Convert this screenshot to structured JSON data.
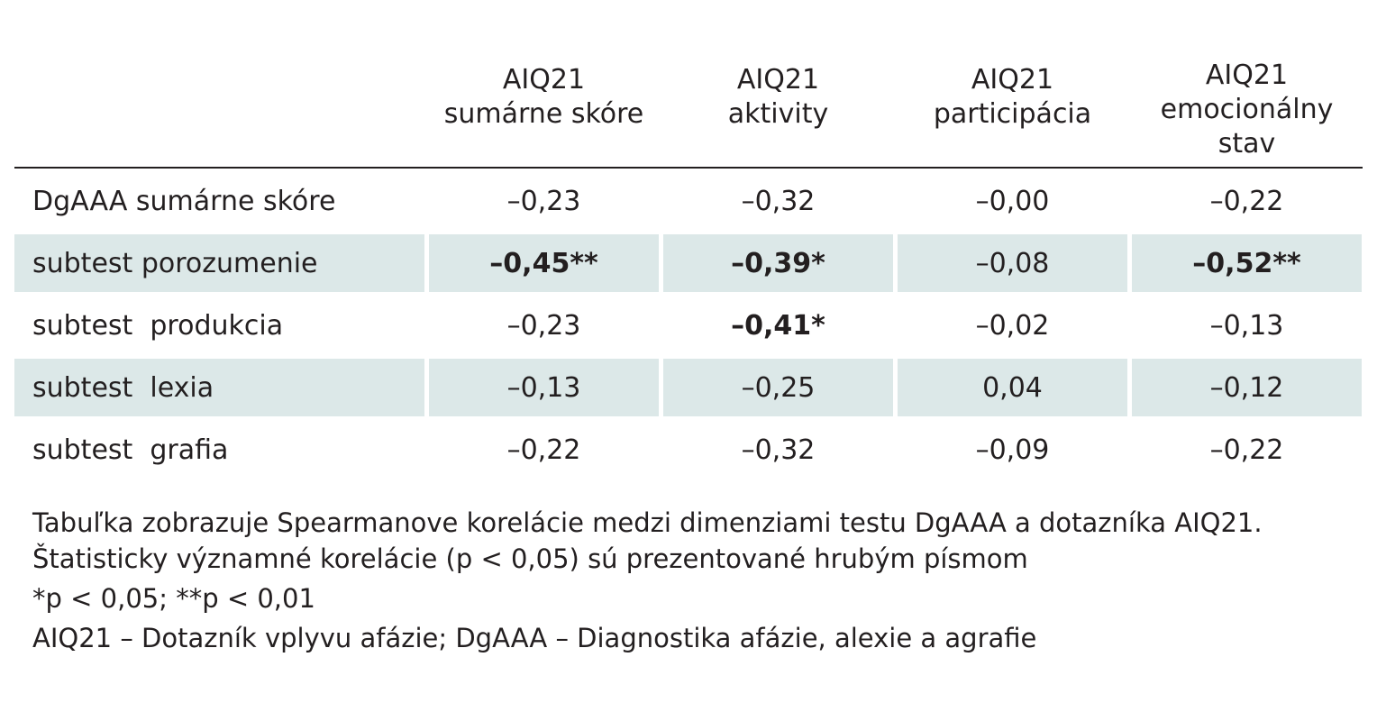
{
  "table": {
    "header": [
      "",
      "AIQ21\nsumárne skóre",
      "AIQ21\naktivity",
      "AIQ21\nparticipácia",
      "AIQ21\nemocionálny\nstav"
    ],
    "rows": [
      {
        "label": "DgAAA sumárne skóre",
        "shaded": false,
        "cells": [
          {
            "value": "–0,23",
            "bold": false
          },
          {
            "value": "–0,32",
            "bold": false
          },
          {
            "value": "–0,00",
            "bold": false
          },
          {
            "value": "–0,22",
            "bold": false
          }
        ]
      },
      {
        "label": "subtest porozumenie",
        "shaded": true,
        "cells": [
          {
            "value": "–0,45**",
            "bold": true
          },
          {
            "value": "–0,39*",
            "bold": true
          },
          {
            "value": "–0,08",
            "bold": false
          },
          {
            "value": "–0,52**",
            "bold": true
          }
        ]
      },
      {
        "label": "subtest  produkcia",
        "shaded": false,
        "cells": [
          {
            "value": "–0,23",
            "bold": false
          },
          {
            "value": "–0,41*",
            "bold": true
          },
          {
            "value": "–0,02",
            "bold": false
          },
          {
            "value": "–0,13",
            "bold": false
          }
        ]
      },
      {
        "label": "subtest  lexia",
        "shaded": true,
        "cells": [
          {
            "value": "–0,13",
            "bold": false
          },
          {
            "value": "–0,25",
            "bold": false
          },
          {
            "value": "0,04",
            "bold": false
          },
          {
            "value": "–0,12",
            "bold": false
          }
        ]
      },
      {
        "label": "subtest  grafia",
        "shaded": false,
        "cells": [
          {
            "value": "–0,22",
            "bold": false
          },
          {
            "value": "–0,32",
            "bold": false
          },
          {
            "value": "–0,09",
            "bold": false
          },
          {
            "value": "–0,22",
            "bold": false
          }
        ]
      }
    ]
  },
  "notes": {
    "description": "Tabuľka zobrazuje Spearmanove korelácie medzi dimenziami testu DgAAA a dotazníka AIQ21. Štatisticky významné korelácie (p < 0,05) sú prezentované hrubým písmom",
    "significance": "*p < 0,05; **p < 0,01",
    "abbreviations": "AIQ21 – Dotazník vplyvu afázie; DgAAA – Diagnostika afázie, alexie a agrafie"
  },
  "colors": {
    "shaded_row": "#dce8e8",
    "text": "#231f20"
  }
}
